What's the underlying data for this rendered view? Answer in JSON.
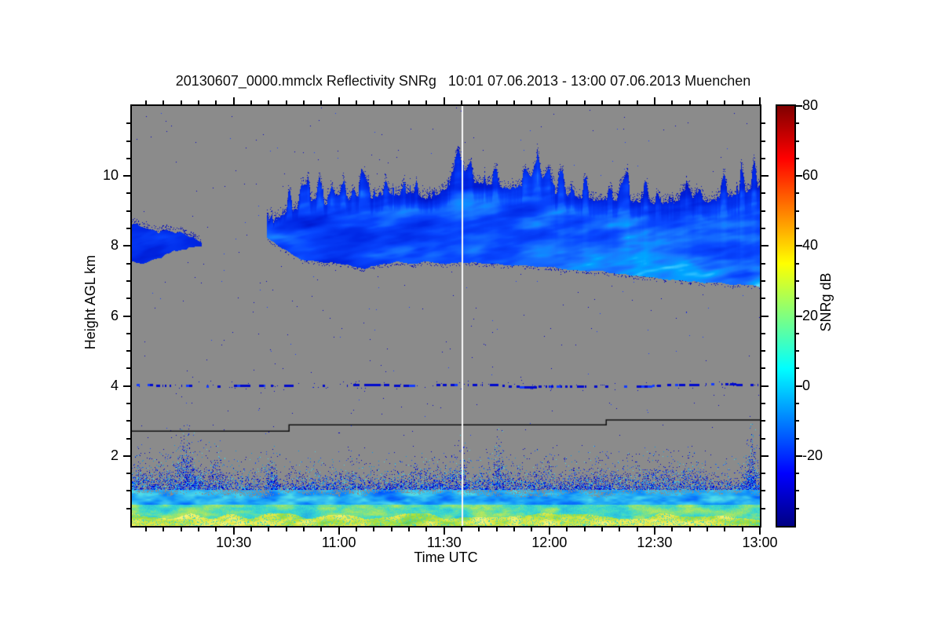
{
  "title": "20130607_0000.mmclx Reflectivity SNRg   10:01 07.06.2013 - 13:00 07.06.2013 Muenchen",
  "axes": {
    "x": {
      "label": "Time UTC",
      "start_label": "10:01",
      "end_label": "13:00",
      "duration_min": 179,
      "majors": [
        {
          "min": 29,
          "label": "10:30"
        },
        {
          "min": 59,
          "label": "11:00"
        },
        {
          "min": 89,
          "label": "11:30"
        },
        {
          "min": 119,
          "label": "12:00"
        },
        {
          "min": 149,
          "label": "12:30"
        },
        {
          "min": 179,
          "label": "13:00"
        }
      ],
      "first_minor_min": 4,
      "minor_step_min": 5
    },
    "y": {
      "label": "Height AGL km",
      "range_km": [
        0,
        12
      ],
      "majors": [
        2,
        4,
        6,
        8,
        10
      ],
      "minor_step_km": 0.5
    },
    "colorbar": {
      "label": "SNRg dB",
      "range_db": [
        -40,
        80
      ],
      "majors": [
        80,
        60,
        40,
        20,
        0,
        -20
      ],
      "minor_step_db": 5
    }
  },
  "colors": {
    "background": "#ffffff",
    "frame": "#000000",
    "no_signal_gray": "#8b8b8b",
    "marker_line": "#fafafa",
    "step_line": "#111111",
    "jet_stops": [
      [
        0,
        "#000083"
      ],
      [
        12.5,
        "#0000ff"
      ],
      [
        37.5,
        "#00ffff"
      ],
      [
        62.5,
        "#ffff00"
      ],
      [
        87.5,
        "#ff0000"
      ],
      [
        100,
        "#800000"
      ]
    ]
  },
  "chart_data": {
    "type": "heatmap",
    "title": "20130607_0000.mmclx Reflectivity SNRg",
    "time_span": "10:01 07.06.2013 - 13:00 07.06.2013",
    "site": "Muenchen",
    "xlabel": "Time UTC",
    "ylabel": "Height AGL km",
    "x_ticks": [
      "10:30",
      "11:00",
      "11:30",
      "12:00",
      "12:30",
      "13:00"
    ],
    "y_ticks_km": [
      2,
      4,
      6,
      8,
      10
    ],
    "y_range_km": [
      0,
      12
    ],
    "value_label": "SNRg dB",
    "value_range_db": [
      -40,
      80
    ],
    "colorbar_ticks_db": [
      80,
      60,
      40,
      20,
      0,
      -20
    ],
    "colormap": "jet",
    "no_signal_background": "gray",
    "features": {
      "cirrus_patch": {
        "start_min": 0,
        "end_min": 19,
        "center_km": 8.08,
        "half_width_km": 0.42,
        "snr_db_range": [
          -25,
          -8
        ]
      },
      "cirrus_layer": {
        "start_min": 38.5,
        "end_min": 179,
        "texture": "fallstreaks",
        "snr_db_range": [
          -22,
          8
        ],
        "top_profile_min_km": [
          [
            38.5,
            8.3
          ],
          [
            41,
            8.8
          ],
          [
            44,
            8.95
          ],
          [
            48,
            9.1
          ],
          [
            52,
            9.35
          ],
          [
            56,
            9.2
          ],
          [
            60,
            9.3
          ],
          [
            64,
            9.45
          ],
          [
            68,
            9.35
          ],
          [
            72,
            9.5
          ],
          [
            76,
            9.45
          ],
          [
            80,
            9.55
          ],
          [
            84,
            9.3
          ],
          [
            88,
            9.5
          ],
          [
            92,
            9.85
          ],
          [
            96,
            9.9
          ],
          [
            100,
            9.8
          ],
          [
            104,
            9.7
          ],
          [
            108,
            9.65
          ],
          [
            112,
            9.75
          ],
          [
            116,
            9.6
          ],
          [
            120,
            9.5
          ],
          [
            124,
            9.45
          ],
          [
            128,
            9.4
          ],
          [
            132,
            9.3
          ],
          [
            136,
            9.35
          ],
          [
            140,
            9.25
          ],
          [
            144,
            9.3
          ],
          [
            148,
            9.2
          ],
          [
            152,
            9.25
          ],
          [
            156,
            9.3
          ],
          [
            160,
            9.35
          ],
          [
            164,
            9.3
          ],
          [
            168,
            9.4
          ],
          [
            172,
            9.5
          ],
          [
            176,
            9.6
          ],
          [
            179,
            9.7
          ]
        ],
        "base_profile_min_km": [
          [
            38.5,
            8.25
          ],
          [
            40,
            8.15
          ],
          [
            42,
            8.0
          ],
          [
            44,
            7.9
          ],
          [
            46,
            7.75
          ],
          [
            48,
            7.65
          ],
          [
            50,
            7.6
          ],
          [
            54,
            7.55
          ],
          [
            58,
            7.5
          ],
          [
            62,
            7.45
          ],
          [
            64,
            7.4
          ],
          [
            66,
            7.35
          ],
          [
            68,
            7.45
          ],
          [
            72,
            7.5
          ],
          [
            76,
            7.55
          ],
          [
            80,
            7.5
          ],
          [
            84,
            7.55
          ],
          [
            88,
            7.5
          ],
          [
            92,
            7.5
          ],
          [
            96,
            7.55
          ],
          [
            100,
            7.5
          ],
          [
            104,
            7.5
          ],
          [
            108,
            7.45
          ],
          [
            112,
            7.45
          ],
          [
            116,
            7.4
          ],
          [
            120,
            7.4
          ],
          [
            124,
            7.35
          ],
          [
            128,
            7.3
          ],
          [
            132,
            7.3
          ],
          [
            136,
            7.25
          ],
          [
            140,
            7.2
          ],
          [
            144,
            7.15
          ],
          [
            148,
            7.1
          ],
          [
            152,
            7.05
          ],
          [
            156,
            7.0
          ],
          [
            160,
            7.0
          ],
          [
            164,
            6.95
          ],
          [
            168,
            6.95
          ],
          [
            172,
            6.9
          ],
          [
            176,
            6.9
          ],
          [
            179,
            6.85
          ]
        ]
      },
      "plankton_layer": {
        "km": 4.02,
        "thickness_km": 0.07,
        "dashed": true,
        "snr_db": -25
      },
      "boundary_layer": {
        "solid_top_km": 0.85,
        "speckle_top_km_min": 1.3,
        "speckle_top_km_max": 2.4,
        "surface_band_km": 0.24,
        "surface_snr_db": [
          25,
          42
        ],
        "right_plume_min": 176.5,
        "right_plume_top_km": 2.55
      },
      "step_line": {
        "color": "#111111",
        "segments_min_min_km": [
          [
            0,
            44.8,
            2.71
          ],
          [
            44.8,
            135.2,
            2.89
          ],
          [
            135.2,
            179,
            3.03
          ]
        ]
      },
      "marker_line": {
        "min": 94.3,
        "time": "11:35",
        "color": "#fafafa"
      },
      "noise_speckles": {
        "density": 0.0011,
        "palette": "navy-blue"
      }
    }
  }
}
